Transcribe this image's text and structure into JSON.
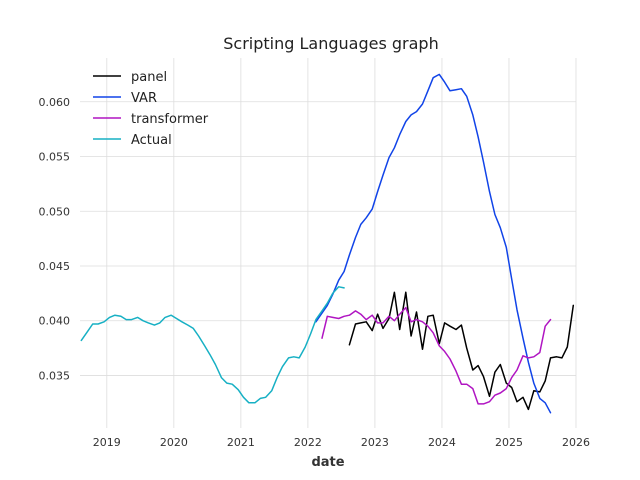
{
  "chart_data": {
    "type": "line",
    "title": "Scripting Languages graph",
    "xlabel": "date",
    "ylabel": "",
    "xlim": [
      2018.6,
      2026.0
    ],
    "ylim": [
      0.0302,
      0.064
    ],
    "x_ticks": [
      2019,
      2020,
      2021,
      2022,
      2023,
      2024,
      2025,
      2026
    ],
    "y_ticks": [
      0.035,
      0.04,
      0.045,
      0.05,
      0.055,
      0.06
    ],
    "y_tick_labels": [
      "0.035",
      "0.040",
      "0.045",
      "0.050",
      "0.055",
      "0.060"
    ],
    "grid": true,
    "legend_position": "top-left",
    "series": [
      {
        "name": "panel",
        "color": "#000000",
        "x": [
          2022.62,
          2022.71,
          2022.79,
          2022.87,
          2022.96,
          2023.04,
          2023.12,
          2023.21,
          2023.29,
          2023.37,
          2023.46,
          2023.54,
          2023.62,
          2023.71,
          2023.79,
          2023.87,
          2023.96,
          2024.04,
          2024.12,
          2024.21,
          2024.29,
          2024.37,
          2024.46,
          2024.54,
          2024.62,
          2024.71,
          2024.79,
          2024.87,
          2024.96,
          2025.04,
          2025.12,
          2025.21,
          2025.29,
          2025.37,
          2025.46,
          2025.54,
          2025.62,
          2025.71,
          2025.79,
          2025.87,
          2025.96
        ],
        "values": [
          0.0378,
          0.0397,
          0.0398,
          0.0399,
          0.0391,
          0.0406,
          0.0393,
          0.0402,
          0.0426,
          0.0392,
          0.0426,
          0.0386,
          0.0408,
          0.0374,
          0.0404,
          0.0405,
          0.0379,
          0.0398,
          0.0395,
          0.0392,
          0.0396,
          0.0375,
          0.0355,
          0.0359,
          0.0349,
          0.0331,
          0.0353,
          0.036,
          0.0343,
          0.0339,
          0.0326,
          0.033,
          0.0319,
          0.0336,
          0.0335,
          0.0345,
          0.0366,
          0.0367,
          0.0366,
          0.0376,
          0.0414
        ]
      },
      {
        "name": "VAR",
        "color": "#1144e8",
        "x": [
          2022.12,
          2022.21,
          2022.29,
          2022.37,
          2022.46,
          2022.54,
          2022.62,
          2022.71,
          2022.79,
          2022.87,
          2022.96,
          2023.04,
          2023.12,
          2023.21,
          2023.29,
          2023.37,
          2023.46,
          2023.54,
          2023.62,
          2023.71,
          2023.79,
          2023.87,
          2023.96,
          2024.04,
          2024.12,
          2024.21,
          2024.29,
          2024.37,
          2024.46,
          2024.54,
          2024.62,
          2024.71,
          2024.79,
          2024.87,
          2024.96,
          2025.04,
          2025.12,
          2025.21,
          2025.29,
          2025.37,
          2025.46,
          2025.54,
          2025.62
        ],
        "values": [
          0.0399,
          0.0407,
          0.0414,
          0.0424,
          0.0437,
          0.0445,
          0.046,
          0.0476,
          0.0488,
          0.0494,
          0.0502,
          0.0518,
          0.0533,
          0.0549,
          0.0558,
          0.057,
          0.0582,
          0.0588,
          0.0591,
          0.0598,
          0.061,
          0.0622,
          0.0625,
          0.0618,
          0.061,
          0.0611,
          0.0612,
          0.0605,
          0.0588,
          0.0568,
          0.0545,
          0.0518,
          0.0497,
          0.0485,
          0.0467,
          0.0438,
          0.041,
          0.0384,
          0.0362,
          0.0343,
          0.0329,
          0.0325,
          0.0316
        ]
      },
      {
        "name": "transformer",
        "color": "#b015c2",
        "x": [
          2022.21,
          2022.29,
          2022.37,
          2022.46,
          2022.54,
          2022.62,
          2022.71,
          2022.79,
          2022.87,
          2022.96,
          2023.04,
          2023.12,
          2023.21,
          2023.29,
          2023.37,
          2023.46,
          2023.54,
          2023.62,
          2023.71,
          2023.79,
          2023.87,
          2023.96,
          2024.04,
          2024.12,
          2024.21,
          2024.29,
          2024.37,
          2024.46,
          2024.54,
          2024.62,
          2024.71,
          2024.79,
          2024.87,
          2024.96,
          2025.04,
          2025.12,
          2025.21,
          2025.29,
          2025.37,
          2025.46,
          2025.54,
          2025.62
        ],
        "values": [
          0.0384,
          0.0404,
          0.0403,
          0.0402,
          0.0404,
          0.0405,
          0.0409,
          0.0406,
          0.0401,
          0.0405,
          0.0398,
          0.0398,
          0.0404,
          0.04,
          0.0406,
          0.0412,
          0.0399,
          0.0401,
          0.0399,
          0.0395,
          0.0389,
          0.0377,
          0.0372,
          0.0365,
          0.0354,
          0.0342,
          0.0342,
          0.0338,
          0.0324,
          0.0324,
          0.0326,
          0.0332,
          0.0334,
          0.0338,
          0.0348,
          0.0355,
          0.0368,
          0.0366,
          0.0367,
          0.0371,
          0.0395,
          0.0401
        ]
      },
      {
        "name": "Actual",
        "color": "#17b0c4",
        "x": [
          2018.62,
          2018.71,
          2018.79,
          2018.87,
          2018.96,
          2019.04,
          2019.12,
          2019.21,
          2019.29,
          2019.37,
          2019.46,
          2019.54,
          2019.62,
          2019.71,
          2019.79,
          2019.87,
          2019.96,
          2020.04,
          2020.12,
          2020.21,
          2020.29,
          2020.37,
          2020.46,
          2020.54,
          2020.62,
          2020.71,
          2020.79,
          2020.87,
          2020.96,
          2021.04,
          2021.12,
          2021.21,
          2021.29,
          2021.37,
          2021.46,
          2021.54,
          2021.62,
          2021.71,
          2021.79,
          2021.87,
          2021.96,
          2022.04,
          2022.12,
          2022.21,
          2022.29,
          2022.37,
          2022.46,
          2022.54
        ],
        "values": [
          0.0382,
          0.039,
          0.0397,
          0.0397,
          0.0399,
          0.0403,
          0.0405,
          0.0404,
          0.0401,
          0.0401,
          0.0403,
          0.04,
          0.0398,
          0.0396,
          0.0398,
          0.0403,
          0.0405,
          0.0402,
          0.0399,
          0.0396,
          0.0393,
          0.0386,
          0.0377,
          0.0369,
          0.036,
          0.0348,
          0.0343,
          0.0342,
          0.0337,
          0.033,
          0.0325,
          0.0325,
          0.0329,
          0.033,
          0.0336,
          0.0348,
          0.0358,
          0.0366,
          0.0367,
          0.0366,
          0.0376,
          0.0388,
          0.0401,
          0.0409,
          0.0416,
          0.0425,
          0.0431,
          0.043
        ]
      }
    ]
  }
}
